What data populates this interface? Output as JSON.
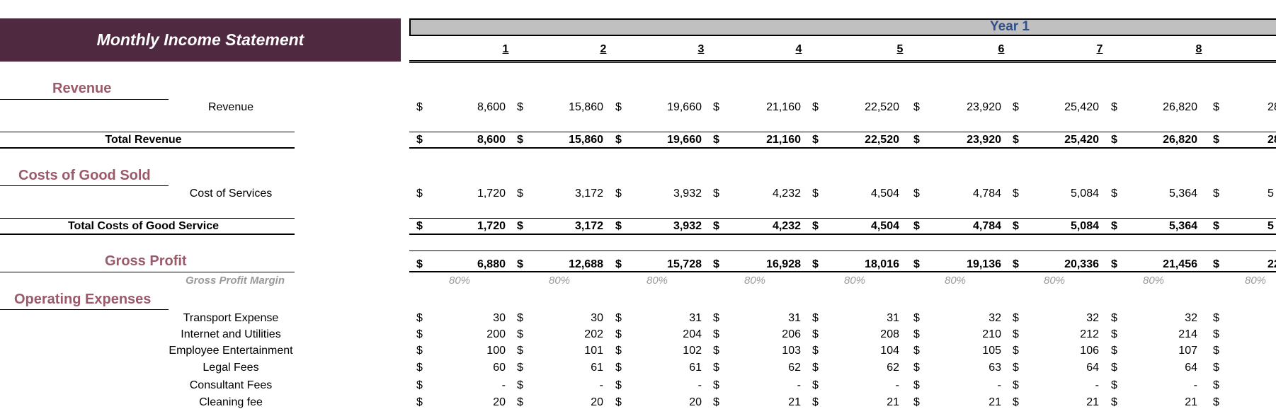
{
  "title": "Monthly Income Statement",
  "year_label": "Year 1",
  "months": [
    "1",
    "2",
    "3",
    "4",
    "5",
    "6",
    "7",
    "8"
  ],
  "currency": "$",
  "sections": {
    "revenue": "Revenue",
    "cogs": "Costs of Good Sold",
    "gross_profit": "Gross Profit",
    "opex": "Operating Expenses"
  },
  "rows": {
    "revenue": {
      "label": "Revenue",
      "values": [
        "8,600",
        "15,860",
        "19,660",
        "21,160",
        "22,520",
        "23,920",
        "25,420",
        "26,820"
      ],
      "next": "28"
    },
    "total_revenue": {
      "label": "Total Revenue",
      "values": [
        "8,600",
        "15,860",
        "19,660",
        "21,160",
        "22,520",
        "23,920",
        "25,420",
        "26,820"
      ],
      "next": "28"
    },
    "cost_of_services": {
      "label": "Cost of Services",
      "values": [
        "1,720",
        "3,172",
        "3,932",
        "4,232",
        "4,504",
        "4,784",
        "5,084",
        "5,364"
      ],
      "next": "5"
    },
    "total_cogs": {
      "label": "Total Costs of Good Service",
      "values": [
        "1,720",
        "3,172",
        "3,932",
        "4,232",
        "4,504",
        "4,784",
        "5,084",
        "5,364"
      ],
      "next": "5"
    },
    "gross_profit": {
      "values": [
        "6,880",
        "12,688",
        "15,728",
        "16,928",
        "18,016",
        "19,136",
        "20,336",
        "21,456"
      ],
      "next": "22"
    },
    "gross_profit_margin": {
      "label": "Gross Profit Margin",
      "values": [
        "80%",
        "80%",
        "80%",
        "80%",
        "80%",
        "80%",
        "80%",
        "80%",
        "80%"
      ]
    },
    "transport": {
      "label": "Transport Expense",
      "values": [
        "30",
        "30",
        "31",
        "31",
        "31",
        "32",
        "32",
        "32"
      ]
    },
    "internet": {
      "label": "Internet and Utilities",
      "values": [
        "200",
        "202",
        "204",
        "206",
        "208",
        "210",
        "212",
        "214"
      ]
    },
    "employee_ent": {
      "label": "Employee Entertainment",
      "values": [
        "100",
        "101",
        "102",
        "103",
        "104",
        "105",
        "106",
        "107"
      ]
    },
    "legal": {
      "label": "Legal Fees",
      "values": [
        "60",
        "61",
        "61",
        "62",
        "62",
        "63",
        "64",
        "64"
      ]
    },
    "consultant": {
      "label": "Consultant Fees",
      "values": [
        "-",
        "-",
        "-",
        "-",
        "-",
        "-",
        "-",
        "-"
      ]
    },
    "cleaning": {
      "label": "Cleaning fee",
      "values": [
        "20",
        "20",
        "20",
        "21",
        "21",
        "21",
        "21",
        "21"
      ]
    }
  }
}
